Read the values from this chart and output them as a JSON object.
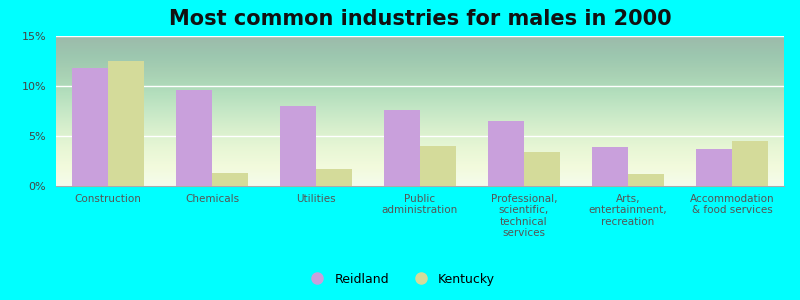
{
  "title": "Most common industries for males in 2000",
  "categories": [
    "Construction",
    "Chemicals",
    "Utilities",
    "Public\nadministration",
    "Professional,\nscientific,\ntechnical\nservices",
    "Arts,\nentertainment,\nrecreation",
    "Accommodation\n& food services"
  ],
  "reidland_values": [
    11.8,
    9.6,
    8.0,
    7.6,
    6.5,
    3.9,
    3.7
  ],
  "kentucky_values": [
    12.5,
    1.3,
    1.7,
    4.0,
    3.4,
    1.2,
    4.5
  ],
  "reidland_color": "#c9a0dc",
  "kentucky_color": "#d4db9a",
  "background_color": "#00ffff",
  "ylim": [
    0,
    15
  ],
  "yticks": [
    0,
    5,
    10,
    15
  ],
  "ytick_labels": [
    "0%",
    "5%",
    "10%",
    "15%"
  ],
  "bar_width": 0.35,
  "title_fontsize": 15,
  "tick_fontsize": 8,
  "legend_labels": [
    "Reidland",
    "Kentucky"
  ]
}
